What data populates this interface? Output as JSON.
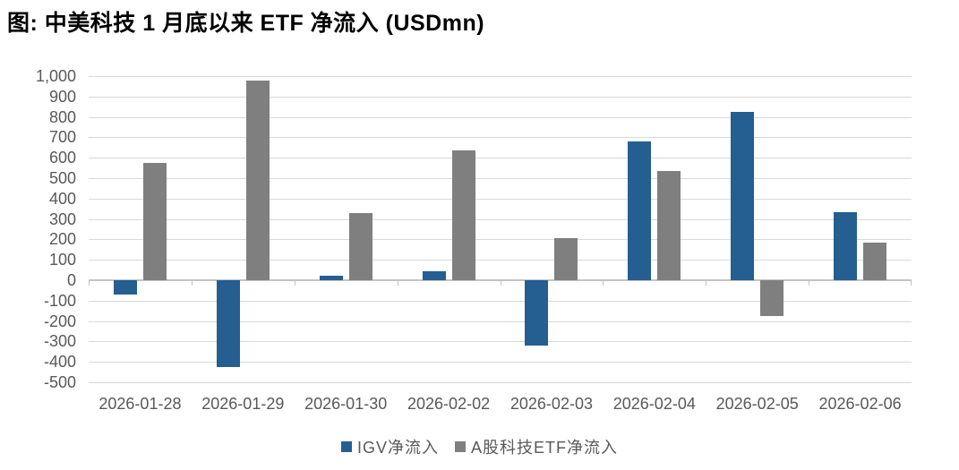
{
  "title": "图:  中美科技 1 月底以来 ETF 净流入 (USDmn)",
  "chart_data": {
    "type": "bar",
    "title": "图:  中美科技 1 月底以来 ETF 净流入 (USDmn)",
    "unit": "USDmn",
    "categories": [
      "2026-01-28",
      "2026-01-29",
      "2026-01-30",
      "2026-02-02",
      "2026-02-03",
      "2026-02-04",
      "2026-02-05",
      "2026-02-06"
    ],
    "series": [
      {
        "name": "IGV净流入",
        "color": "#255E91",
        "values": [
          -70,
          -425,
          20,
          45,
          -320,
          680,
          825,
          335
        ]
      },
      {
        "name": "A股科技ETF净流入",
        "color": "#7F7F7F",
        "values": [
          575,
          980,
          330,
          635,
          205,
          535,
          -175,
          185
        ]
      }
    ],
    "ylim": [
      -500,
      1000
    ],
    "ytick_step": 100,
    "ytick_labels": [
      "1,000",
      "900",
      "800",
      "700",
      "600",
      "500",
      "400",
      "300",
      "200",
      "100",
      "0",
      "-100",
      "-200",
      "-300",
      "-400",
      "-500"
    ],
    "grid": "horizontal",
    "legend_position": "bottom",
    "colors": {
      "gridline": "#D9D9D9",
      "axis_line": "#C3C3C3",
      "tick_label": "#595959",
      "title_text": "#000000"
    }
  }
}
